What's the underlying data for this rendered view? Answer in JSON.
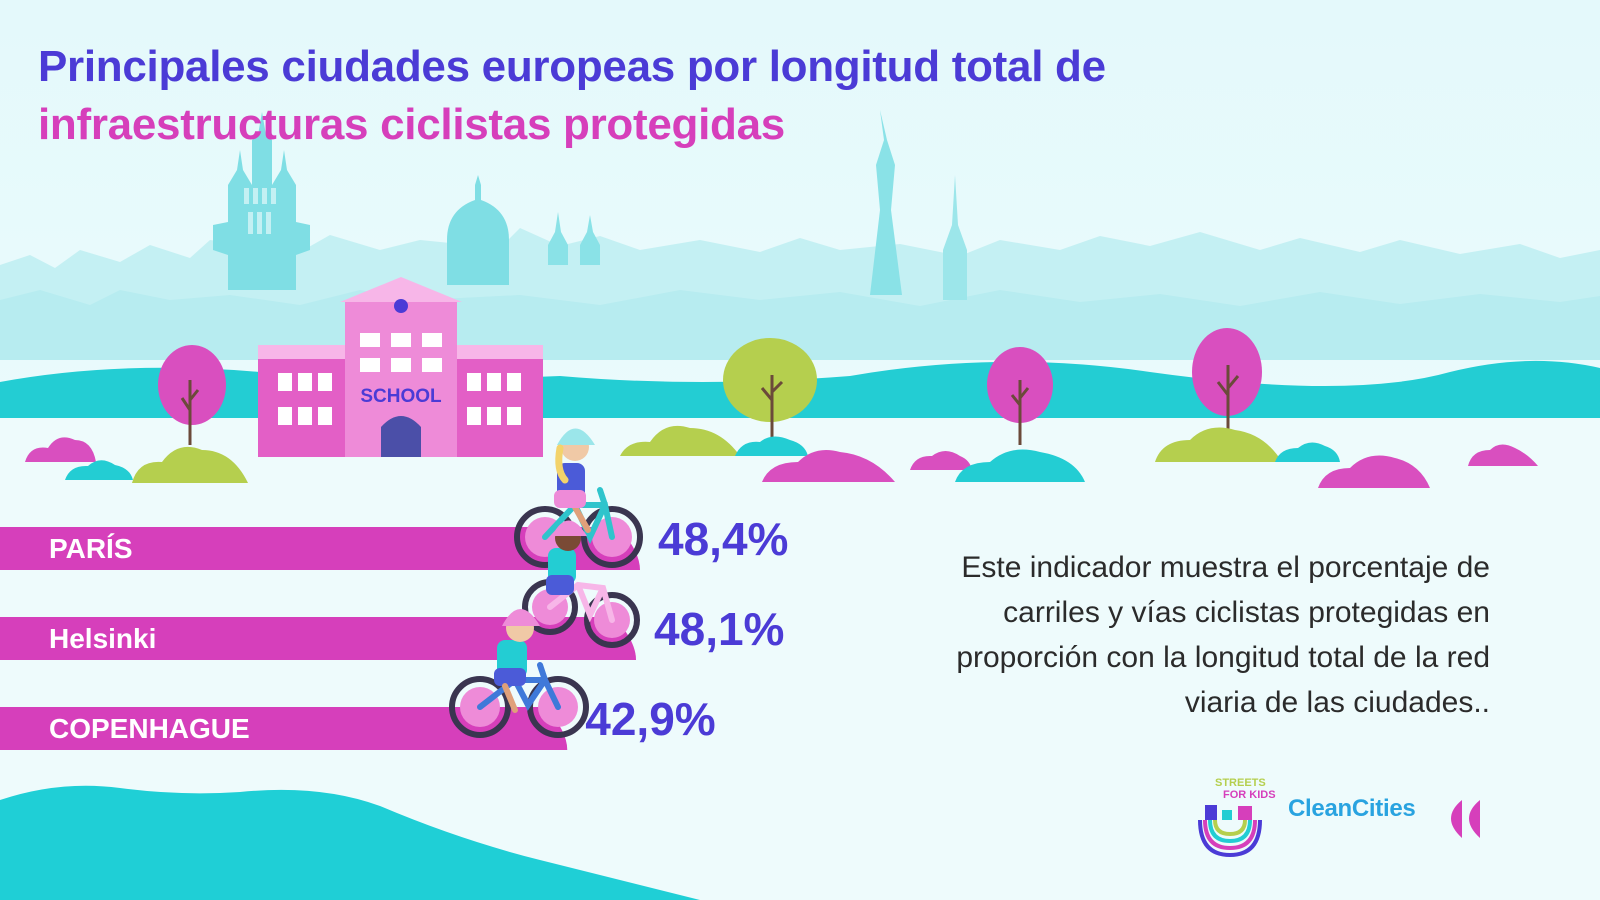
{
  "title": {
    "line1": "Principales ciudades europeas por longitud total de",
    "line2": "infraestructuras ciclistas protegidas"
  },
  "description": "Este indicador muestra el porcentaje de carriles y vías ciclistas protegidas en proporción con la longitud total de la red viaria de las ciudades..",
  "school_sign": "SCHOOL",
  "logos": {
    "streets_for_kids_top": "STREETS",
    "streets_for_kids_bottom": "FOR KIDS",
    "clean_cities": "CleanCities"
  },
  "colors": {
    "title_line1": "#4b3bd6",
    "title_line2": "#d63fbb",
    "bar": "#d63fbb",
    "value": "#4b3bd6",
    "sky": "#e6fafb",
    "skyline": "#bdeef1",
    "hill": "#23cdd3",
    "tree_pink": "#d94fbf",
    "tree_green": "#b5cf4e",
    "school": "#e35fc6"
  },
  "chart_data": {
    "type": "bar",
    "orientation": "horizontal",
    "categories": [
      "PARÍS",
      "Helsinki",
      "COPENHAGUE"
    ],
    "values": [
      48.4,
      48.1,
      42.9
    ],
    "value_labels": [
      "48,4%",
      "48,1%",
      "42,9%"
    ],
    "unit": "%",
    "title": "Principales ciudades europeas por longitud total de infraestructuras ciclistas protegidas",
    "xlabel": "",
    "ylabel": "",
    "grid": false,
    "legend": "none"
  }
}
